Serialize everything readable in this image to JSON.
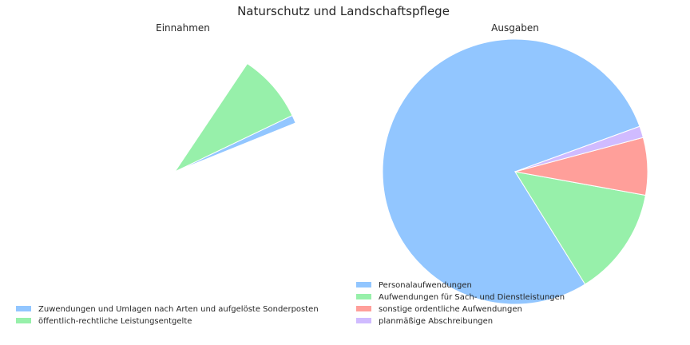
{
  "chart_data": {
    "title": "Naturschutz und Landschaftspflege",
    "charts": [
      {
        "type": "pie",
        "title": "Einnahmen",
        "legend_placement": "bottom-left",
        "slices": [
          {
            "label": "Zuwendungen und Umlagen nach Arten und aufgelöste Sonderposten",
            "value": 1.0,
            "color": "#92c6ff"
          },
          {
            "label": "öffentlich-rechtliche Leistungsentgelte",
            "value": 8.5,
            "color": "#97f0aa"
          }
        ],
        "visible_fraction": 0.095
      },
      {
        "type": "pie",
        "title": "Ausgaben",
        "legend_placement": "bottom-left",
        "slices": [
          {
            "label": "Personalaufwendungen",
            "value": 78.3,
            "color": "#92c6ff"
          },
          {
            "label": "Aufwendungen für Sach- und Dienstleistungen",
            "value": 13.3,
            "color": "#97f0aa"
          },
          {
            "label": "sonstige ordentliche Aufwendungen",
            "value": 7.0,
            "color": "#ff9f9a"
          },
          {
            "label": "planmäßige Abschreibungen",
            "value": 1.4,
            "color": "#d0bbff"
          }
        ],
        "visible_fraction": 1.0
      }
    ]
  }
}
